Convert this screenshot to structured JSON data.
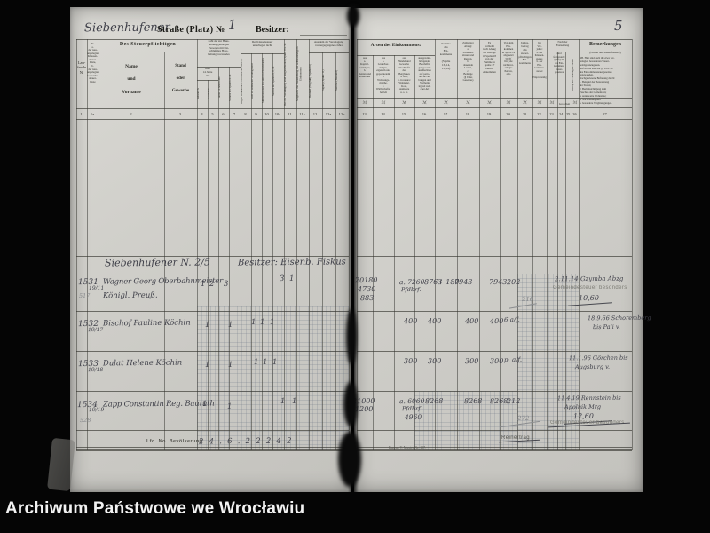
{
  "archive_footer": "Archiwum Państwowe we Wrocławiu",
  "title": {
    "street_handwritten": "Siebenhufener",
    "street_printed": "Straße (Platz) №",
    "house_number": "1",
    "owner_label": "Besitzer:",
    "page_number": "5"
  },
  "left_header": {
    "col1_title": "Lau-\nfende\n№",
    "col1a_title": "№\na.\nder neu-\nangelegten\nKlassen-\nsteuer-\nListe,\nb.\nder neu-\nangelegten\nGewerbe-\nsteuer-\nListe",
    "taxpayer_group": "Des Steuerpflichtigen",
    "col2_title": "Name\nund\nVorname",
    "col3_title": "Stand\noder\nGewerbe",
    "persons_group": "Zahl der zur Haus-\nhaltung gehörigen\nPersonen mit Ein-\nschluß des Haus-\nhaltungsvorstandes",
    "over14_label": "über\n14 Jahre\nalte",
    "col4_title": "männlich",
    "col5_title": "weiblich",
    "col6_title": "unter 14 Jahren alte",
    "col7_title": "Summe der Spalten 4—6",
    "exempt_group": "Der Klassensteuer\nunterliegen nicht",
    "col8_title": "wegen Einkommens von mehr als 3000 ℳ",
    "col9_title": "weil sie anderweit veranlagt sind",
    "col10_title": "Militärpersonen des aktiven Dienststandes",
    "col10a_title": "Summe der Spalten 8, 9, 10",
    "col11_title": "Bei der Veranlagung sind ausgeschieden (Spalte 8 u. 9)",
    "col11a_title": "Mitglieder der Haushaltung mit selbstständigem Einkommen",
    "prev_year_group": "Aus dem der Veranlagung\nvorhergegangenen Jahre",
    "col12_title": "Bestand (Wegfall) (Spalte 10)",
    "col12a_title": "Zugang (Spalte 11)",
    "col12b_title": "Summe (Bestand)",
    "col_numbers": [
      "1.",
      "1a.",
      "2.",
      "3.",
      "4.",
      "5.",
      "6.",
      "7.",
      "8.",
      "9.",
      "10.",
      "10a.",
      "11.",
      "11a.",
      "12.",
      "12a.",
      "12b."
    ]
  },
  "right_header": {
    "income_group": "Arten des Einkommens:",
    "col13_title": "aus\na.\nKapital-\nvermögen,\nb.\nRenten und\nPensionen",
    "col14_title": "aus\na.\nGrundver-\nmögen,\neigenem und\ngepachtetem,\nb.\nWohnungs-\nmiethe,\nc.\nWirthschafts-\nbetrieb",
    "col15_title": "aus\nHandel und\nGewerbe\neinschließl.\ndes\nBergbaues\na. baar,\nb. in natura:\nWohnung,\nKost,\nAusbeute\nu. s. w.",
    "col16_title": "aus gewinn-\nbringender\nBeschäfti-\ngung sowie\naus Rechten\nauf perio-\ndische He-\nbungen und\nVortheile\nirgend wel-\ncher Art",
    "col17_title": "Summe\ndes\nEin-\nkommens\n \n(Spalte\n13, 14,\n15, 16)",
    "col18_title": "Zulässiger\nAbzug:\na.\nSchulden-\nzinsen und\nRenten,\nb.\ndauernde\nLasten,\nc.\nBeiträge\n(§ 9 des\nGesetzes)",
    "col19_title": "Es\nverbleibt\nnach Abzug\nder Beträge\nin Spalte 18\nvon der\nSumme in\nSpalte 17\nJahres-\neinkommen",
    "col20_title": "Von dem\nEin-\nkommen\nin Spalte 19\nabgesetzt\n50 ℳ\nfür jede\nnicht ver-\nanlagte\nPerson,\nalso",
    "col21_title": "Jahres-\nbetrag\ndes\nsteuer-\npflichtigen\nEin-\nkommens",
    "col22_title": "Im\nVor-\njahre:\na. der\nKlassen-\nsteuer,\nb. der\nEin-\nkommen-\nsteuer\n \nEinprozentig",
    "assessment_group": "Nach der\nFestsetzung",
    "col23_25_title": "sind\nfestgestellt\n§ 58 § 59\ndes Ein-\nkommen-\nsteuer-\ngesetzes",
    "col26_title": "Betrag der veranlagten Steuer",
    "remarks_title": "Bemerkungen",
    "remarks_subtitle": "(Grund der Steuerfreiheit)",
    "remarks_note": "NB. Hier sind auch die etwa ver-\nanlagten besonderen Steuer-\nbeträge anzugeben.\nAuf solche sind die §§ 19 u. 20\ndes Einkommensteuergesetzes\nanzuwenden.\nNachgewiesene Befreiung durch:\n1. Beispiel der Besteuerung\nder Stufen;\n2. Berücksichtigung zum\nZuschuß der Gemeinden;\n3. anderweite Wohnsitze;\n4. Nachlassung und\n5. besondere Vergünstigungen.",
    "unit_mark": "ℳ",
    "unit_groschen": "Groschen",
    "col_numbers": [
      "13.",
      "14.",
      "15.",
      "16.",
      "17.",
      "18.",
      "19.",
      "20.",
      "21.",
      "22.",
      "23.",
      "24.",
      "25.",
      "26.",
      "27."
    ]
  },
  "entries": {
    "street_line": {
      "location": "Siebenhufener N. 2/5",
      "owner": "Besitzer: Eisenb. Fiskus"
    },
    "rows": [
      {
        "no": "1531",
        "sub_no": "19/11",
        "pencil_no": "517",
        "name": "Wagner Georg Oberbahnmeister",
        "name2": "Königl. Preuß.",
        "m4": "1",
        "m5": "2",
        "m6": "3",
        "m10": "3",
        "m11": "1",
        "v13a": "20180",
        "v13b": "4730",
        "v13c": "883",
        "v15a": "a. 7260",
        "v15b": "Pfdbrf.",
        "v16": "8763",
        "v17": "+ 180",
        "v18": "7943",
        "v19": "7943",
        "v20": "202",
        "remark1": "2.11.14 Gzymba Abzg",
        "amount": "10,60",
        "stamp": "Gemeindesteuer besonders"
      },
      {
        "no": "1532",
        "sub_no": "19/17",
        "name": "Bischof Pauline Köchin",
        "m4": "1",
        "m6": "1",
        "m8": "1",
        "m9": "1",
        "m10": "1",
        "v15": "400",
        "v16": "400",
        "v18": "400",
        "v19": "400",
        "v20": "6 a/f.",
        "remark1": "18.9.66 Schoremberg",
        "remark2": "bis Pali v."
      },
      {
        "no": "1533",
        "sub_no": "19/18",
        "name": "Dulat Helene Köchin",
        "m4": "1",
        "m6": "1",
        "m8": "1",
        "m9": "1",
        "m10": "1",
        "v15": "300",
        "v16": "300",
        "v18": "300",
        "v19": "300",
        "v20": "p. a/f.",
        "remark1": "11.1.96 Görchen bis",
        "remark2": "Augsburg v."
      },
      {
        "no": "1534",
        "sub_no": "19/19",
        "pencil_no": "528",
        "name": "Zapp Constantin Reg. Baurath",
        "m4": "1",
        "m6": "1",
        "m10": "1",
        "m11": "1",
        "v13a": "21000",
        "v13b": "1200",
        "v15a": "a. 6060",
        "v15b": "Pfdbrf.",
        "v15c": "4960",
        "v16": "8268",
        "v18": "8268",
        "v19": "8268",
        "v20": "212",
        "remark1": "11.4.19 Rennstein bis",
        "remark2": "Apolnik Mrg",
        "amount": "12,60",
        "stamp": "Gemeindesteuer besonders"
      }
    ],
    "summary": {
      "label": "Lfd. No. Bevölkerung",
      "values": "2 4 . 6 . 2 2 2 4 2"
    },
    "pencil_marks": {
      "row1": "216",
      "row4": "272"
    },
    "bottom_stamp": "Reinertrag",
    "form_footer": "Bureau V. Muster Nr. 107."
  }
}
